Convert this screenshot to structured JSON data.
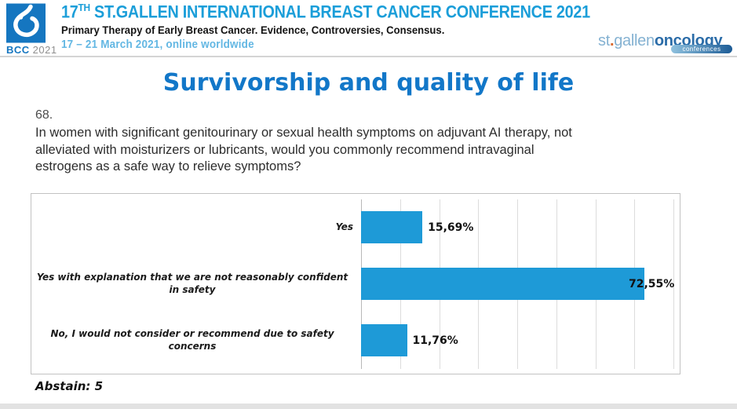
{
  "header": {
    "logo": {
      "acronym": "BCC",
      "year": "2021"
    },
    "title_num": "17",
    "title_sup": "TH",
    "title_rest": " ST.GALLEN INTERNATIONAL BREAST CANCER CONFERENCE 2021",
    "subtitle": "Primary Therapy of Early Breast Cancer. Evidence, Controversies, Consensus.",
    "dates": "17 – 21 March 2021, online worldwide",
    "right_logo": {
      "part1": "st",
      "dot": ".",
      "part2": "gallen",
      "part3": "oncology",
      "badge": "conferences"
    }
  },
  "slide": {
    "title": "Survivorship and quality of life",
    "question_number": "68.",
    "question_lines": [
      "In women with significant genitourinary or sexual health symptoms on adjuvant AI therapy, not",
      "alleviated with moisturizers or lubricants, would you commonly recommend intravaginal",
      "estrogens as a safe way to relieve symptoms?"
    ],
    "abstain": "Abstain: 5"
  },
  "chart_data": {
    "type": "bar",
    "orientation": "horizontal",
    "title": "",
    "categories": [
      "Yes",
      "Yes with explanation that we are not reasonably confident in safety",
      "No, I would not consider or recommend due to safety concerns"
    ],
    "values": [
      15.69,
      72.55,
      11.76
    ],
    "value_labels": [
      "15,69%",
      "72,55%",
      "11,76%"
    ],
    "xlim": [
      0,
      100
    ],
    "gridline_interval_percent": 10,
    "grid": true,
    "legend": false,
    "bar_color": "#1e9ad7"
  },
  "colors": {
    "bar_blue": "#1e9ad7",
    "slide_title_blue": "#1277c8",
    "header_title_blue": "#1b9ed9",
    "dates_blue": "#63b7e3",
    "logo_blue": "#1576c0",
    "sg_light_blue": "#85b2d2",
    "sg_dark_blue": "#2b6ca8",
    "sg_dot_orange": "#d96a2e"
  }
}
